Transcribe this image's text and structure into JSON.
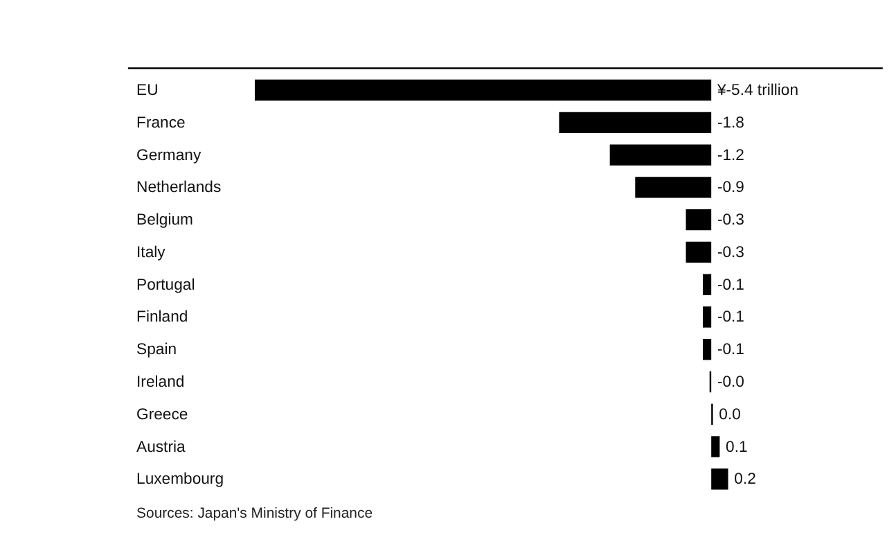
{
  "chart_data": {
    "type": "bar",
    "orientation": "horizontal",
    "categories": [
      "EU",
      "France",
      "Germany",
      "Netherlands",
      "Belgium",
      "Italy",
      "Portugal",
      "Finland",
      "Spain",
      "Ireland",
      "Greece",
      "Austria",
      "Luxembourg"
    ],
    "values": [
      -5.4,
      -1.8,
      -1.2,
      -0.9,
      -0.3,
      -0.3,
      -0.1,
      -0.1,
      -0.1,
      -0.02,
      0.02,
      0.1,
      0.2
    ],
    "value_labels": [
      "¥-5.4 trillion",
      "-1.8",
      "-1.2",
      "-0.9",
      "-0.3",
      "-0.3",
      "-0.1",
      "-0.1",
      "-0.1",
      "-0.0",
      "0.0",
      "0.1",
      "0.2"
    ],
    "color": "#000000",
    "annotations": [
      "Sources: Japan's Ministry of Finance"
    ]
  }
}
